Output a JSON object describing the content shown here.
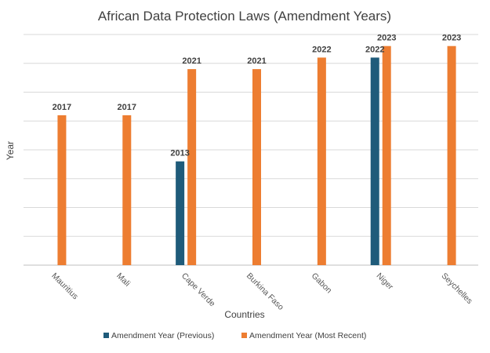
{
  "chart_data": {
    "type": "bar",
    "title": "African Data Protection Laws (Amendment Years)",
    "xlabel": "Countries",
    "ylabel": "Year",
    "categories": [
      "Mauritius",
      "Mali",
      "Cape Verde",
      "Burkina Faso",
      "Gabon",
      "Niger",
      "Seychelles"
    ],
    "series": [
      {
        "name": "Amendment Year (Previous)",
        "color": "#1f5b7a",
        "values": [
          null,
          null,
          2013,
          null,
          null,
          2022,
          null
        ]
      },
      {
        "name": "Amendment Year (Most Recent)",
        "color": "#ed7d31",
        "values": [
          2017,
          2017,
          2021,
          2021,
          2022,
          2023,
          2023
        ]
      }
    ],
    "ylim": [
      2004,
      2024
    ],
    "grid": true,
    "legend_position": "bottom"
  }
}
